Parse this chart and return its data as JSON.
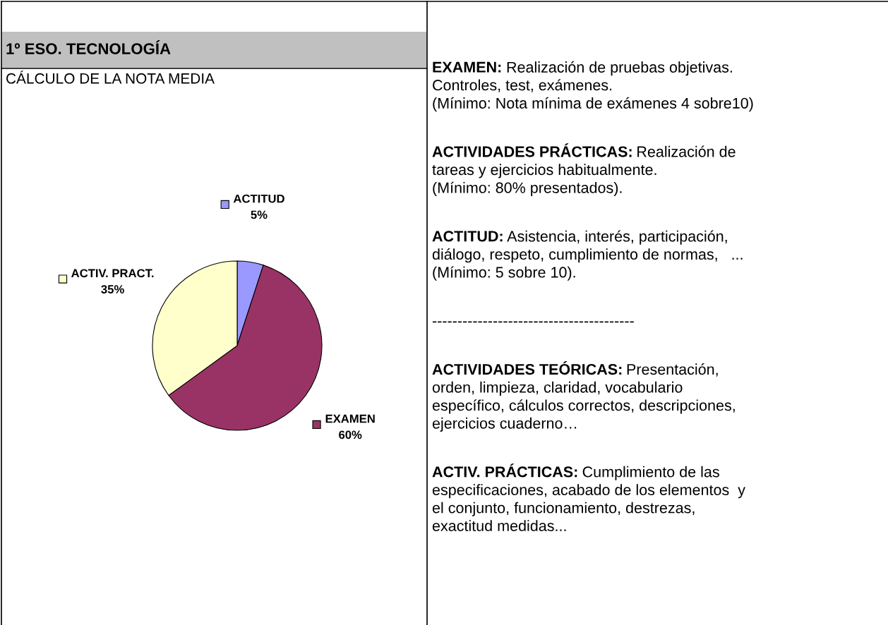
{
  "chart_data": [
    {
      "type": "pie",
      "title": "1º ESO. TECNOLOGÍA",
      "subtitle": "CÁLCULO DE LA NOTA MEDIA",
      "categories": [
        "ACTITUD",
        "EXAMEN",
        "ACTIV. PRACT."
      ],
      "values": [
        5,
        60,
        35
      ],
      "value_labels": [
        "5%",
        "60%",
        "35%"
      ],
      "colors": [
        "#9999ff",
        "#993366",
        "#ffffcc"
      ],
      "legend": "top left"
    },
    {
      "type": "other",
      "annotations": [
        "EXAMEN: Realización de pruebas objetivas.\nControles, test, exámenes.\n(Mínimo: Nota mínima de exámenes 4 sobre10)",
        "ACTIVIDADES PRÁCTICAS: Realización de\ntareas y ejercicios habitualmente.\n(Mínimo: 80% presentados).",
        "ACTITUD: Asistencia, interés, participación,\ndiálogo, respeto, cumplimiento de normas,   ...\n(Mínimo: 5 sobre 10).",
        "----------------------------------------",
        "ACTIVIDADES TEÓRICAS: Presentación,\norden, limpieza, claridad, vocabulario\nespecífico, cálculos correctos, descripciones,\nejercicios cuaderno…",
        "ACTIV. PRÁCTICAS: Cumplimiento de las\nespecificaciones, acabado de los elementos  y\nel conjunto, funcionamiento, destrezas,\nexactitud medidas..."
      ]
    }
  ]
}
